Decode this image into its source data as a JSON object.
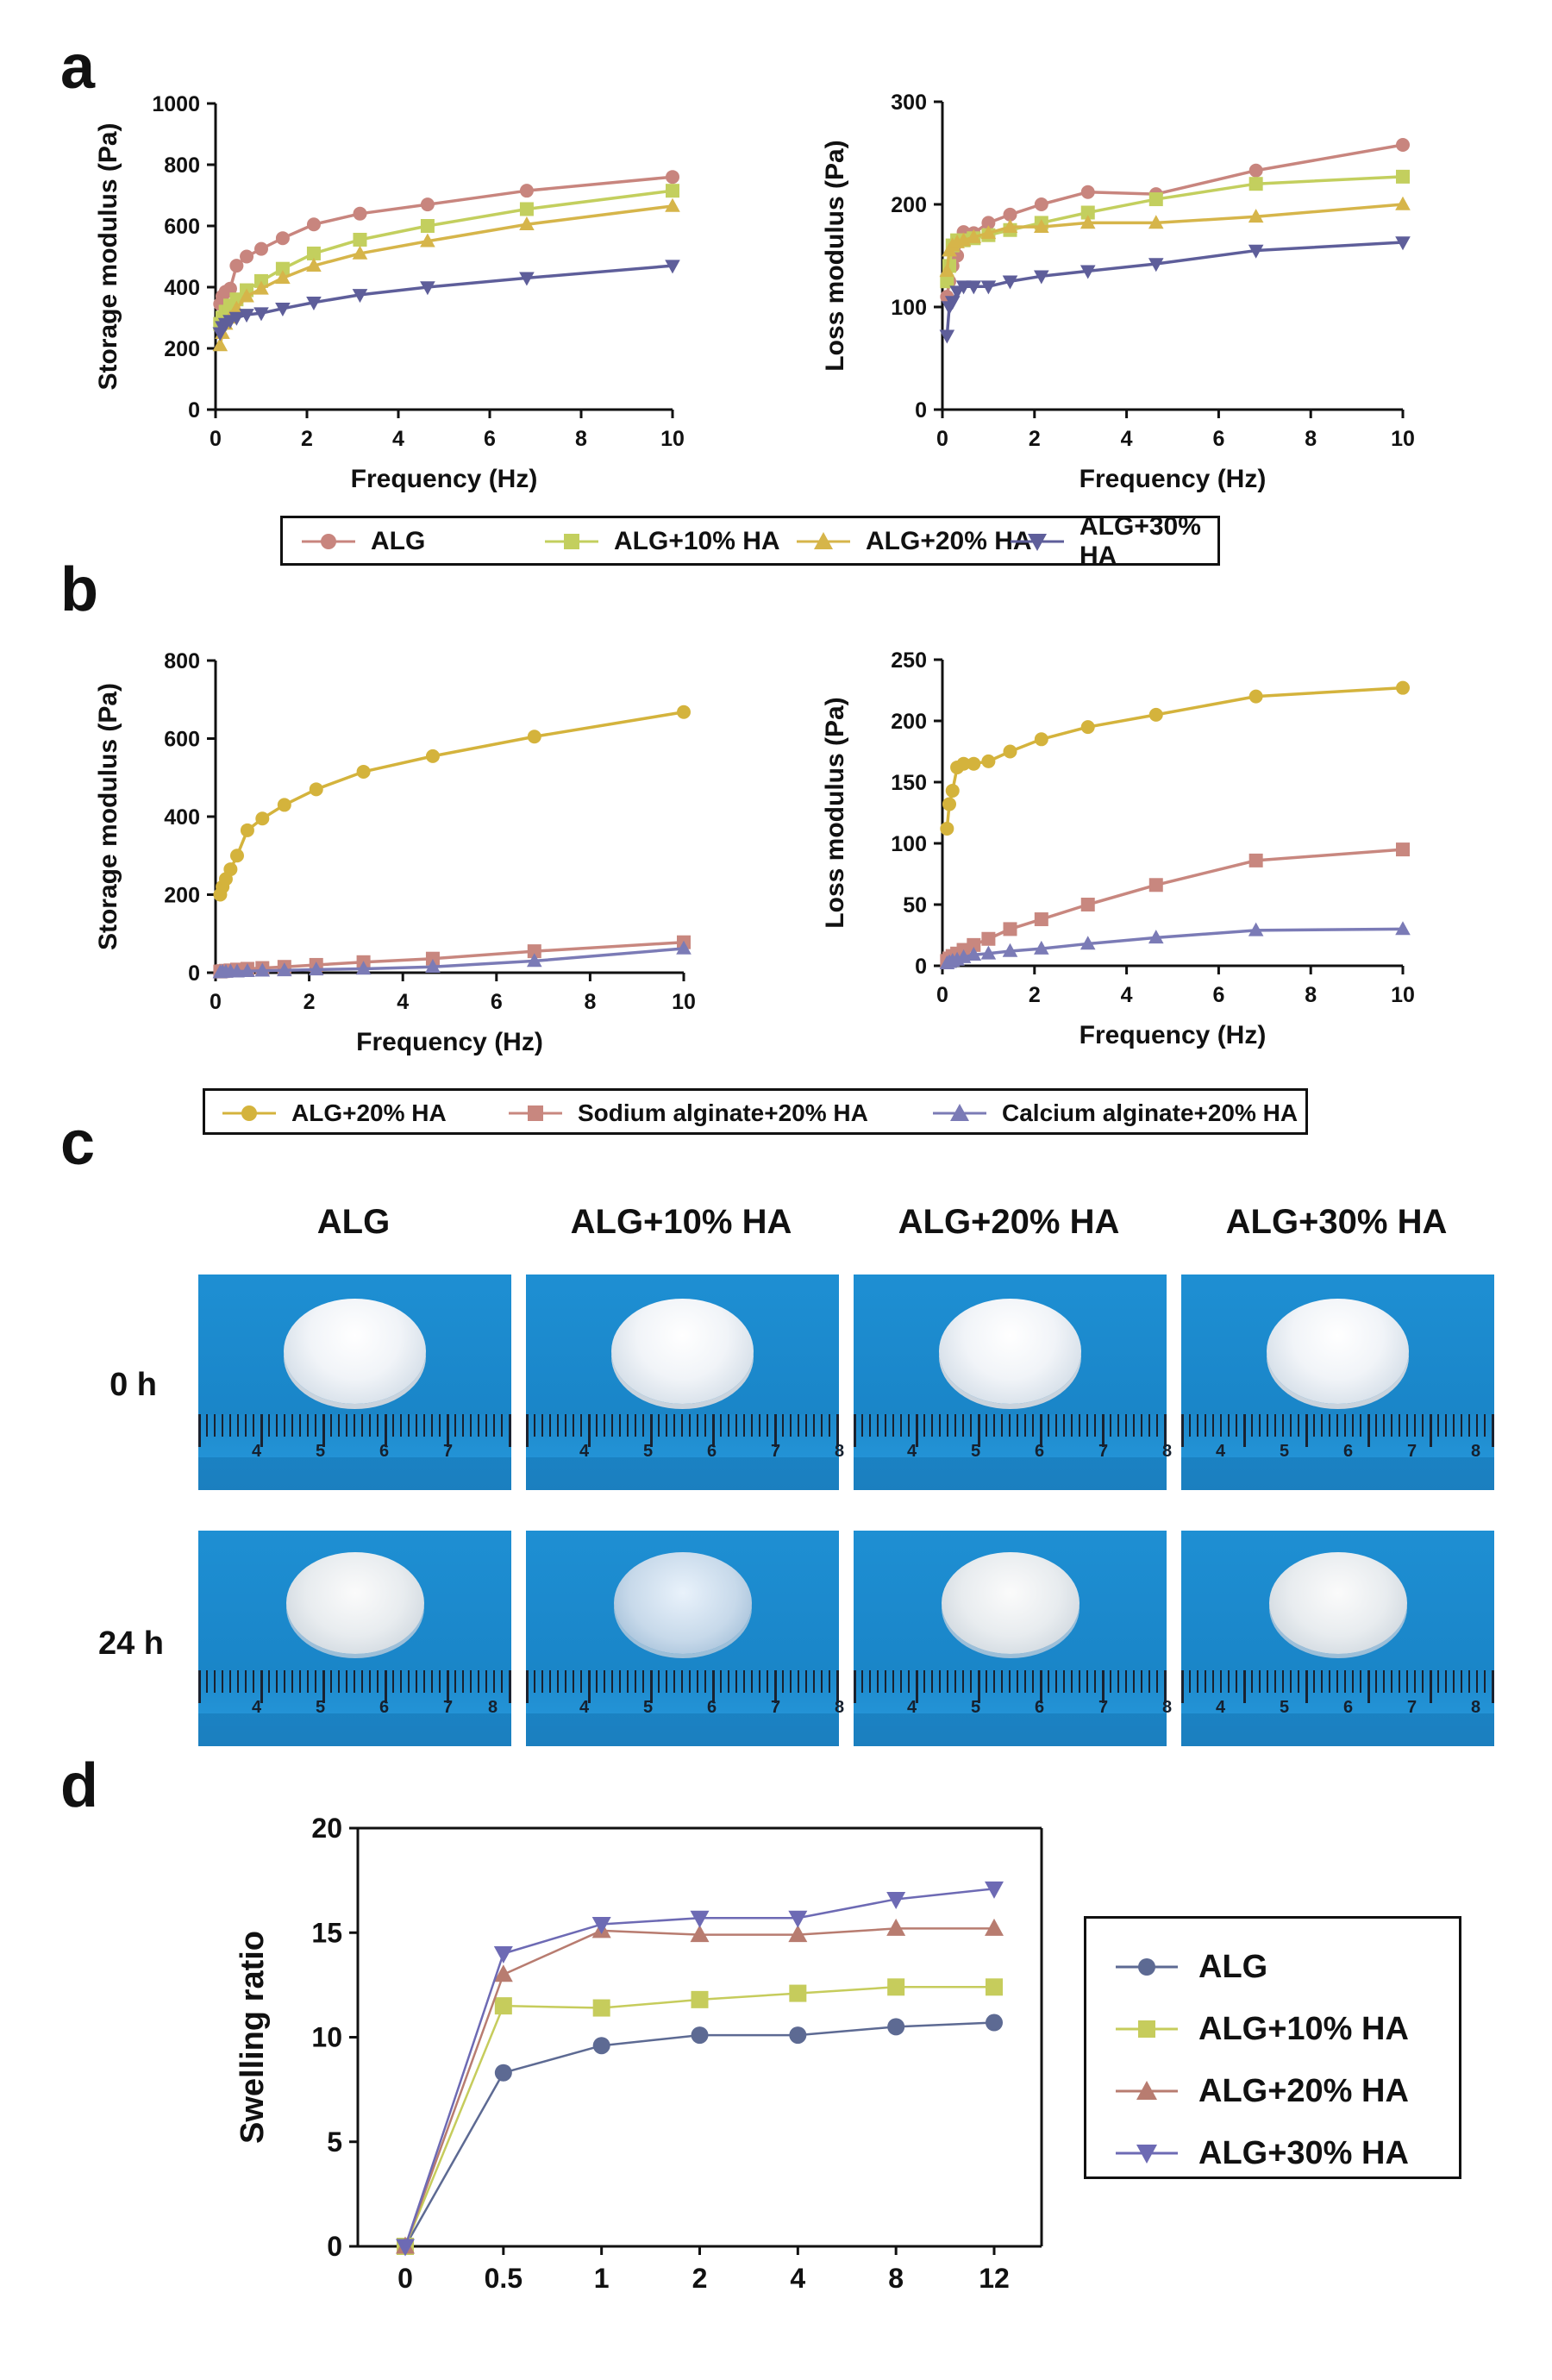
{
  "panels": {
    "a": "a",
    "b": "b",
    "c": "c",
    "d": "d"
  },
  "colors": {
    "ALG": "#c8857e",
    "ALG10": "#c3cf5e",
    "ALG20": "#d6b54a",
    "ALG30": "#5e5e9a",
    "b_ALG20": "#d4b33c",
    "b_sodium": "#c8877f",
    "b_calcium": "#7b7bb6",
    "d_ALG": "#5d6a93",
    "d_ALG10": "#c6cc5c",
    "d_ALG20": "#b87c70",
    "d_ALG30": "#6d6ab4"
  },
  "legend_a": [
    "ALG",
    "ALG+10% HA",
    "ALG+20% HA",
    "ALG+30% HA"
  ],
  "legend_b": [
    "ALG+20% HA",
    "Sodium alginate+20% HA",
    "Calcium alginate+20% HA"
  ],
  "legend_d": [
    "ALG",
    "ALG+10% HA",
    "ALG+20% HA",
    "ALG+30% HA"
  ],
  "photos": {
    "headers": [
      "ALG",
      "ALG+10% HA",
      "ALG+20% HA",
      "ALG+30% HA"
    ],
    "rows": [
      "0 h",
      "24 h"
    ],
    "ruler_numbers": [
      [
        "4",
        "5",
        "6",
        "7"
      ],
      [
        "4",
        "5",
        "6",
        "7",
        "8"
      ],
      [
        "4",
        "5",
        "6",
        "7",
        "8"
      ],
      [
        "4",
        "5",
        "6",
        "7",
        "8"
      ],
      [
        "4",
        "5",
        "6",
        "7",
        "8"
      ],
      [
        "4",
        "5",
        "6",
        "7",
        "8"
      ],
      [
        "4",
        "5",
        "6",
        "7",
        "8"
      ],
      [
        "4",
        "5",
        "6",
        "7",
        "8"
      ]
    ]
  },
  "chart_data": [
    {
      "id": "a-storage",
      "type": "line",
      "xlabel": "Frequency (Hz)",
      "ylabel": "Storage modulus (Pa)",
      "xlim": [
        0,
        10
      ],
      "ylim": [
        0,
        1000
      ],
      "xticks": [
        0,
        2,
        4,
        6,
        8,
        10
      ],
      "yticks": [
        0,
        200,
        400,
        600,
        800,
        1000
      ],
      "x": [
        0.1,
        0.15,
        0.22,
        0.32,
        0.46,
        0.68,
        1.0,
        1.47,
        2.15,
        3.16,
        4.64,
        6.81,
        10.0
      ],
      "series": [
        {
          "name": "ALG",
          "marker": "circle",
          "values": [
            345,
            370,
            385,
            395,
            470,
            500,
            525,
            560,
            605,
            640,
            670,
            715,
            760
          ]
        },
        {
          "name": "ALG+10% HA",
          "marker": "square",
          "values": [
            280,
            300,
            320,
            340,
            360,
            390,
            420,
            460,
            510,
            555,
            600,
            655,
            715
          ]
        },
        {
          "name": "ALG+20% HA",
          "marker": "triangle-up",
          "values": [
            210,
            250,
            280,
            300,
            330,
            370,
            395,
            430,
            470,
            510,
            550,
            605,
            665
          ]
        },
        {
          "name": "ALG+30% HA",
          "marker": "triangle-down",
          "values": [
            250,
            270,
            280,
            290,
            300,
            310,
            315,
            330,
            350,
            375,
            400,
            430,
            470
          ]
        }
      ]
    },
    {
      "id": "a-loss",
      "type": "line",
      "xlabel": "Frequency (Hz)",
      "ylabel": "Loss modulus (Pa)",
      "xlim": [
        0,
        10
      ],
      "ylim": [
        0,
        300
      ],
      "xticks": [
        0,
        2,
        4,
        6,
        8,
        10
      ],
      "yticks": [
        0,
        100,
        200,
        300
      ],
      "x": [
        0.1,
        0.15,
        0.22,
        0.32,
        0.46,
        0.68,
        1.0,
        1.47,
        2.15,
        3.16,
        4.64,
        6.81,
        10.0
      ],
      "series": [
        {
          "name": "ALG",
          "marker": "circle",
          "values": [
            110,
            125,
            140,
            150,
            173,
            172,
            182,
            190,
            200,
            212,
            210,
            233,
            258
          ]
        },
        {
          "name": "ALG+10% HA",
          "marker": "square",
          "values": [
            125,
            140,
            160,
            165,
            165,
            167,
            170,
            175,
            182,
            192,
            205,
            220,
            227
          ]
        },
        {
          "name": "ALG+20% HA",
          "marker": "triangle-up",
          "values": [
            135,
            155,
            160,
            163,
            165,
            168,
            172,
            178,
            178,
            182,
            182,
            188,
            200
          ]
        },
        {
          "name": "ALG+30% HA",
          "marker": "triangle-down",
          "values": [
            72,
            100,
            105,
            115,
            120,
            120,
            120,
            125,
            130,
            135,
            142,
            155,
            163
          ]
        }
      ]
    },
    {
      "id": "b-storage",
      "type": "line",
      "xlabel": "Frequency (Hz)",
      "ylabel": "Storage modulus (Pa)",
      "xlim": [
        0,
        10
      ],
      "ylim": [
        0,
        800
      ],
      "xticks": [
        0,
        2,
        4,
        6,
        8,
        10
      ],
      "yticks": [
        0,
        200,
        400,
        600,
        800
      ],
      "x": [
        0.1,
        0.15,
        0.22,
        0.32,
        0.46,
        0.68,
        1.0,
        1.47,
        2.15,
        3.16,
        4.64,
        6.81,
        10.0
      ],
      "series": [
        {
          "name": "ALG+20% HA",
          "marker": "circle",
          "values": [
            200,
            220,
            240,
            265,
            300,
            365,
            395,
            430,
            470,
            515,
            555,
            605,
            668
          ]
        },
        {
          "name": "Sodium alginate+20% HA",
          "marker": "square",
          "values": [
            3,
            4,
            5,
            6,
            8,
            10,
            12,
            15,
            20,
            27,
            36,
            55,
            78
          ]
        },
        {
          "name": "Calcium alginate+20% HA",
          "marker": "triangle-up",
          "values": [
            1,
            2,
            2,
            3,
            3,
            4,
            5,
            6,
            8,
            10,
            15,
            30,
            62
          ]
        }
      ]
    },
    {
      "id": "b-loss",
      "type": "line",
      "xlabel": "Frequency (Hz)",
      "ylabel": "Loss modulus (Pa)",
      "xlim": [
        0,
        10
      ],
      "ylim": [
        0,
        250
      ],
      "xticks": [
        0,
        2,
        4,
        6,
        8,
        10
      ],
      "yticks": [
        0,
        50,
        100,
        150,
        200,
        250
      ],
      "x": [
        0.1,
        0.15,
        0.22,
        0.32,
        0.46,
        0.68,
        1.0,
        1.47,
        2.15,
        3.16,
        4.64,
        6.81,
        10.0
      ],
      "series": [
        {
          "name": "ALG+20% HA",
          "marker": "circle",
          "values": [
            112,
            132,
            143,
            162,
            165,
            165,
            167,
            175,
            185,
            195,
            205,
            220,
            227
          ]
        },
        {
          "name": "Sodium alginate+20% HA",
          "marker": "square",
          "values": [
            4,
            6,
            8,
            10,
            13,
            17,
            22,
            30,
            38,
            50,
            66,
            86,
            95
          ]
        },
        {
          "name": "Calcium alginate+20% HA",
          "marker": "triangle-up",
          "values": [
            2,
            3,
            4,
            5,
            7,
            9,
            10,
            12,
            14,
            18,
            23,
            29,
            30
          ]
        }
      ]
    },
    {
      "id": "d-swelling",
      "type": "line",
      "xlabel": "",
      "ylabel": "Swelling ratio",
      "categories": [
        "0",
        "0.5",
        "1",
        "2",
        "4",
        "8",
        "12"
      ],
      "ylim": [
        0,
        20
      ],
      "yticks": [
        0,
        5,
        10,
        15,
        20
      ],
      "series": [
        {
          "name": "ALG",
          "marker": "circle",
          "values": [
            0,
            8.3,
            9.6,
            10.1,
            10.1,
            10.5,
            10.7
          ]
        },
        {
          "name": "ALG+10% HA",
          "marker": "square",
          "values": [
            0,
            11.5,
            11.4,
            11.8,
            12.1,
            12.4,
            12.4
          ]
        },
        {
          "name": "ALG+20% HA",
          "marker": "triangle-up",
          "values": [
            0,
            13.0,
            15.1,
            14.9,
            14.9,
            15.2,
            15.2
          ]
        },
        {
          "name": "ALG+30% HA",
          "marker": "triangle-down",
          "values": [
            0,
            14.0,
            15.4,
            15.7,
            15.7,
            16.6,
            17.1
          ]
        }
      ]
    }
  ]
}
